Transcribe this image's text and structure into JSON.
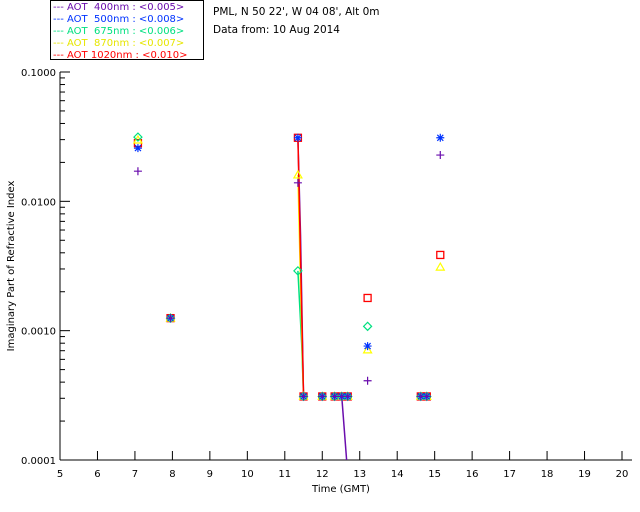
{
  "chart_data": {
    "type": "scatter",
    "title_lines": [
      "PML, N 50 22', W 04 08', Alt 0m",
      "Data from: 10 Aug 2014"
    ],
    "xlabel": "Time (GMT)",
    "ylabel": "Imaginary Part of Refractive Index",
    "xlim": [
      5,
      20
    ],
    "ylim": [
      0.0001,
      0.1
    ],
    "yscale": "log",
    "xticks": [
      "5",
      "6",
      "7",
      "8",
      "9",
      "10",
      "11",
      "12",
      "13",
      "14",
      "15",
      "16",
      "17",
      "18",
      "19",
      "20"
    ],
    "yticks": [
      {
        "v": 0.0001,
        "label": "0.0001"
      },
      {
        "v": 0.001,
        "label": "0.0010"
      },
      {
        "v": 0.01,
        "label": "0.0100"
      },
      {
        "v": 0.1,
        "label": "0.1000"
      }
    ],
    "legend_position": "top-left",
    "series": [
      {
        "name": "AOT  400nm : <0.005>",
        "color": "#6a0dad",
        "marker": "plus",
        "points": [
          [
            7.08,
            0.0171
          ],
          [
            7.95,
            0.00125
          ],
          [
            11.35,
            0.0139
          ],
          [
            11.5,
            0.00031
          ],
          [
            12.0,
            0.00031
          ],
          [
            12.33,
            0.00031
          ],
          [
            12.52,
            0.00031
          ],
          [
            12.68,
            0.00031
          ],
          [
            13.21,
            0.00041
          ],
          [
            14.63,
            0.00031
          ],
          [
            14.79,
            0.00031
          ],
          [
            15.15,
            0.0228
          ]
        ],
        "line": [
          [
            11.35,
            0.031
          ],
          [
            11.42,
            0.0055
          ],
          [
            11.5,
            0.00031
          ]
        ],
        "line2": [
          [
            12.52,
            0.00031
          ],
          [
            12.65,
            0.0001
          ]
        ]
      },
      {
        "name": "AOT  500nm : <0.008>",
        "color": "#0033ff",
        "marker": "asterisk",
        "points": [
          [
            7.08,
            0.0258
          ],
          [
            7.95,
            0.00125
          ],
          [
            11.35,
            0.031
          ],
          [
            11.5,
            0.00031
          ],
          [
            12.0,
            0.00031
          ],
          [
            12.33,
            0.00031
          ],
          [
            12.52,
            0.00031
          ],
          [
            12.68,
            0.00031
          ],
          [
            13.21,
            0.00076
          ],
          [
            14.63,
            0.00031
          ],
          [
            14.79,
            0.00031
          ],
          [
            15.15,
            0.031
          ]
        ]
      },
      {
        "name": "AOT  675nm : <0.006>",
        "color": "#00e080",
        "marker": "diamond",
        "points": [
          [
            7.08,
            0.0314
          ],
          [
            7.95,
            0.00125
          ],
          [
            11.35,
            0.0029
          ],
          [
            11.5,
            0.00031
          ],
          [
            12.0,
            0.00031
          ],
          [
            12.33,
            0.00031
          ],
          [
            12.52,
            0.00031
          ],
          [
            12.68,
            0.00031
          ],
          [
            13.21,
            0.00108
          ],
          [
            14.63,
            0.00031
          ],
          [
            14.79,
            0.00031
          ]
        ],
        "line": [
          [
            11.35,
            0.0029
          ],
          [
            11.45,
            0.0008
          ],
          [
            11.5,
            0.00031
          ]
        ]
      },
      {
        "name": "AOT  870nm : <0.007>",
        "color": "#ffff00",
        "marker": "triangle",
        "points": [
          [
            7.08,
            0.0298
          ],
          [
            7.95,
            0.00125
          ],
          [
            11.35,
            0.016
          ],
          [
            11.5,
            0.00031
          ],
          [
            12.0,
            0.00031
          ],
          [
            12.33,
            0.00031
          ],
          [
            12.52,
            0.00031
          ],
          [
            12.68,
            0.00031
          ],
          [
            13.21,
            0.00071
          ],
          [
            14.63,
            0.00031
          ],
          [
            14.79,
            0.00031
          ],
          [
            15.15,
            0.0031
          ]
        ],
        "line": [
          [
            11.35,
            0.016
          ],
          [
            11.45,
            0.001
          ],
          [
            11.5,
            0.00031
          ]
        ]
      },
      {
        "name": "AOT 1020nm : <0.010>",
        "color": "#ff0000",
        "marker": "square",
        "points": [
          [
            7.08,
            0.0282
          ],
          [
            7.95,
            0.00125
          ],
          [
            11.35,
            0.031
          ],
          [
            11.5,
            0.00031
          ],
          [
            12.0,
            0.00031
          ],
          [
            12.33,
            0.00031
          ],
          [
            12.52,
            0.00031
          ],
          [
            12.68,
            0.00031
          ],
          [
            13.21,
            0.00179
          ],
          [
            14.63,
            0.00031
          ],
          [
            14.79,
            0.00031
          ],
          [
            15.15,
            0.00385
          ]
        ],
        "line": [
          [
            11.35,
            0.031
          ],
          [
            11.5,
            0.00031
          ]
        ]
      }
    ]
  }
}
